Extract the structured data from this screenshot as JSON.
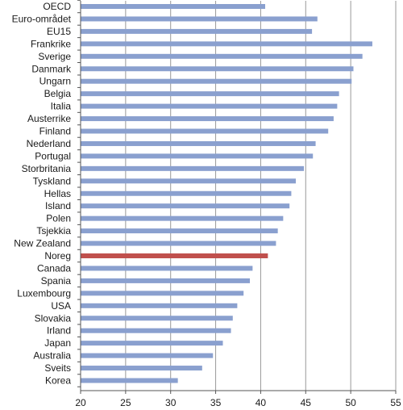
{
  "chart_data": {
    "type": "bar",
    "orientation": "horizontal",
    "categories": [
      "OECD",
      "Euro-området",
      "EU15",
      "Frankrike",
      "Sverige",
      "Danmark",
      "Ungarn",
      "Belgia",
      "Italia",
      "Austerrike",
      "Finland",
      "Nederland",
      "Portugal",
      "Storbritania",
      "Tyskland",
      "Hellas",
      "Island",
      "Polen",
      "Tsjekkia",
      "New Zealand",
      "Noreg",
      "Canada",
      "Spania",
      "Luxembourg",
      "USA",
      "Slovakia",
      "Irland",
      "Japan",
      "Australia",
      "Sveits",
      "Korea"
    ],
    "values": [
      40.5,
      46.3,
      45.7,
      52.4,
      51.3,
      50.3,
      50.1,
      48.7,
      48.5,
      48.1,
      47.5,
      46.1,
      45.8,
      44.8,
      43.9,
      43.4,
      43.2,
      42.5,
      41.9,
      41.7,
      40.8,
      39.1,
      38.8,
      38.1,
      37.4,
      36.9,
      36.7,
      35.8,
      34.7,
      33.5,
      30.8
    ],
    "highlight": "Noreg",
    "xlim": [
      20,
      55
    ],
    "xticks": [
      "20",
      "25",
      "30",
      "35",
      "40",
      "45",
      "50",
      "55"
    ],
    "grid": "vertical",
    "colors": {
      "bar": "#8aa0cf",
      "highlight": "#c0504d",
      "grid": "#999999",
      "axis": "#555555"
    }
  }
}
